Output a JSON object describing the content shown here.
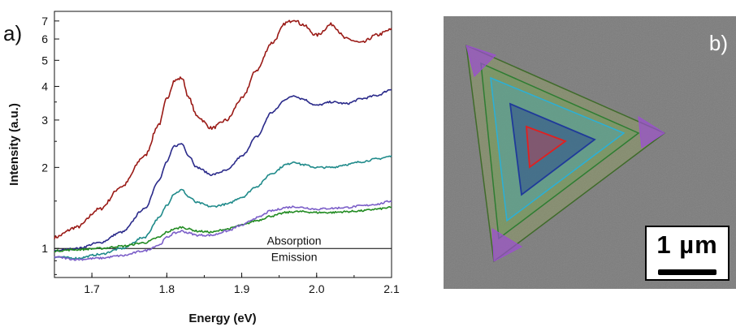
{
  "panel_a_label": "a)",
  "panel_b_label": "b)",
  "scale_bar_label": "1 µm",
  "chart_data": {
    "type": "line",
    "title": "",
    "xlabel": "Energy (eV)",
    "ylabel": "Intensity (a.u.)",
    "xlim": [
      1.65,
      2.1
    ],
    "ylim": [
      0.78,
      7.6
    ],
    "yscale": "log",
    "grid": false,
    "x_ticks": [
      1.7,
      1.8,
      1.9,
      2.0,
      2.1
    ],
    "x_tick_labels": [
      "1.7",
      "1.8",
      "1.9",
      "2.0",
      "2.1"
    ],
    "y_major_ticks": [
      1,
      2,
      3,
      4,
      5,
      6,
      7
    ],
    "y_tick_labels": [
      "1",
      "2",
      "3",
      "4",
      "5",
      "6",
      "7"
    ],
    "annotations": [
      {
        "text": "Absorption",
        "x": 1.97,
        "y": 1.07
      },
      {
        "text": "Emission",
        "x": 1.97,
        "y": 0.93
      }
    ],
    "reference_line": {
      "y": 1.0,
      "color": "#000000"
    },
    "series": [
      {
        "color": "#9a1a16",
        "x": [
          1.65,
          1.68,
          1.71,
          1.74,
          1.77,
          1.79,
          1.8,
          1.81,
          1.82,
          1.83,
          1.84,
          1.86,
          1.88,
          1.9,
          1.92,
          1.94,
          1.96,
          1.97,
          1.98,
          2.0,
          2.02,
          2.04,
          2.06,
          2.08,
          2.1
        ],
        "values": [
          1.1,
          1.2,
          1.4,
          1.7,
          2.2,
          2.9,
          3.6,
          4.2,
          4.3,
          3.6,
          3.1,
          2.8,
          3.0,
          3.6,
          4.6,
          5.8,
          6.9,
          7.1,
          6.8,
          6.2,
          6.8,
          6.0,
          5.8,
          6.2,
          6.5
        ]
      },
      {
        "color": "#2a2a8a",
        "x": [
          1.65,
          1.68,
          1.71,
          1.74,
          1.77,
          1.79,
          1.8,
          1.81,
          1.82,
          1.83,
          1.84,
          1.86,
          1.88,
          1.9,
          1.92,
          1.94,
          1.96,
          1.97,
          1.98,
          2.0,
          2.02,
          2.04,
          2.06,
          2.08,
          2.1
        ],
        "values": [
          0.98,
          1.0,
          1.05,
          1.15,
          1.4,
          1.8,
          2.1,
          2.4,
          2.45,
          2.2,
          2.0,
          1.88,
          1.95,
          2.2,
          2.6,
          3.2,
          3.6,
          3.7,
          3.6,
          3.4,
          3.5,
          3.45,
          3.6,
          3.7,
          3.9
        ]
      },
      {
        "color": "#1f8a8a",
        "x": [
          1.65,
          1.68,
          1.71,
          1.74,
          1.77,
          1.79,
          1.8,
          1.81,
          1.82,
          1.83,
          1.84,
          1.86,
          1.88,
          1.9,
          1.92,
          1.94,
          1.96,
          1.97,
          1.98,
          2.0,
          2.02,
          2.04,
          2.06,
          2.08,
          2.1
        ],
        "values": [
          0.93,
          0.92,
          0.95,
          1.0,
          1.1,
          1.3,
          1.45,
          1.6,
          1.65,
          1.55,
          1.48,
          1.43,
          1.46,
          1.55,
          1.7,
          1.9,
          2.05,
          2.1,
          2.05,
          2.0,
          2.0,
          2.05,
          2.1,
          2.15,
          2.2
        ]
      },
      {
        "color": "#228b22",
        "x": [
          1.65,
          1.68,
          1.71,
          1.74,
          1.77,
          1.79,
          1.8,
          1.81,
          1.82,
          1.83,
          1.84,
          1.86,
          1.88,
          1.9,
          1.92,
          1.94,
          1.96,
          1.97,
          1.98,
          2.0,
          2.02,
          2.04,
          2.06,
          2.08,
          2.1
        ],
        "values": [
          0.98,
          0.99,
          1.0,
          1.02,
          1.05,
          1.1,
          1.15,
          1.18,
          1.2,
          1.18,
          1.16,
          1.15,
          1.18,
          1.22,
          1.27,
          1.32,
          1.36,
          1.37,
          1.37,
          1.36,
          1.36,
          1.37,
          1.38,
          1.4,
          1.42
        ]
      },
      {
        "color": "#7b5ec8",
        "x": [
          1.65,
          1.68,
          1.71,
          1.74,
          1.77,
          1.79,
          1.8,
          1.81,
          1.82,
          1.83,
          1.84,
          1.86,
          1.88,
          1.9,
          1.92,
          1.94,
          1.96,
          1.97,
          1.98,
          2.0,
          2.02,
          2.04,
          2.06,
          2.08,
          2.1
        ],
        "values": [
          0.93,
          0.91,
          0.92,
          0.94,
          0.98,
          1.03,
          1.1,
          1.14,
          1.16,
          1.14,
          1.12,
          1.12,
          1.16,
          1.22,
          1.3,
          1.38,
          1.42,
          1.43,
          1.42,
          1.4,
          1.41,
          1.42,
          1.44,
          1.46,
          1.5
        ]
      }
    ]
  },
  "sem_image": {
    "background_color": "#7c7c7c",
    "outer_triangle_color": "#3f6b2a",
    "shells": [
      {
        "name": "green",
        "color": "#2e7d32"
      },
      {
        "name": "cyan",
        "color": "#2ab0d8"
      },
      {
        "name": "blue",
        "color": "#1f3a9a"
      },
      {
        "name": "red",
        "color": "#e02020"
      }
    ],
    "corner_marker_color": "#9b4fd0"
  }
}
